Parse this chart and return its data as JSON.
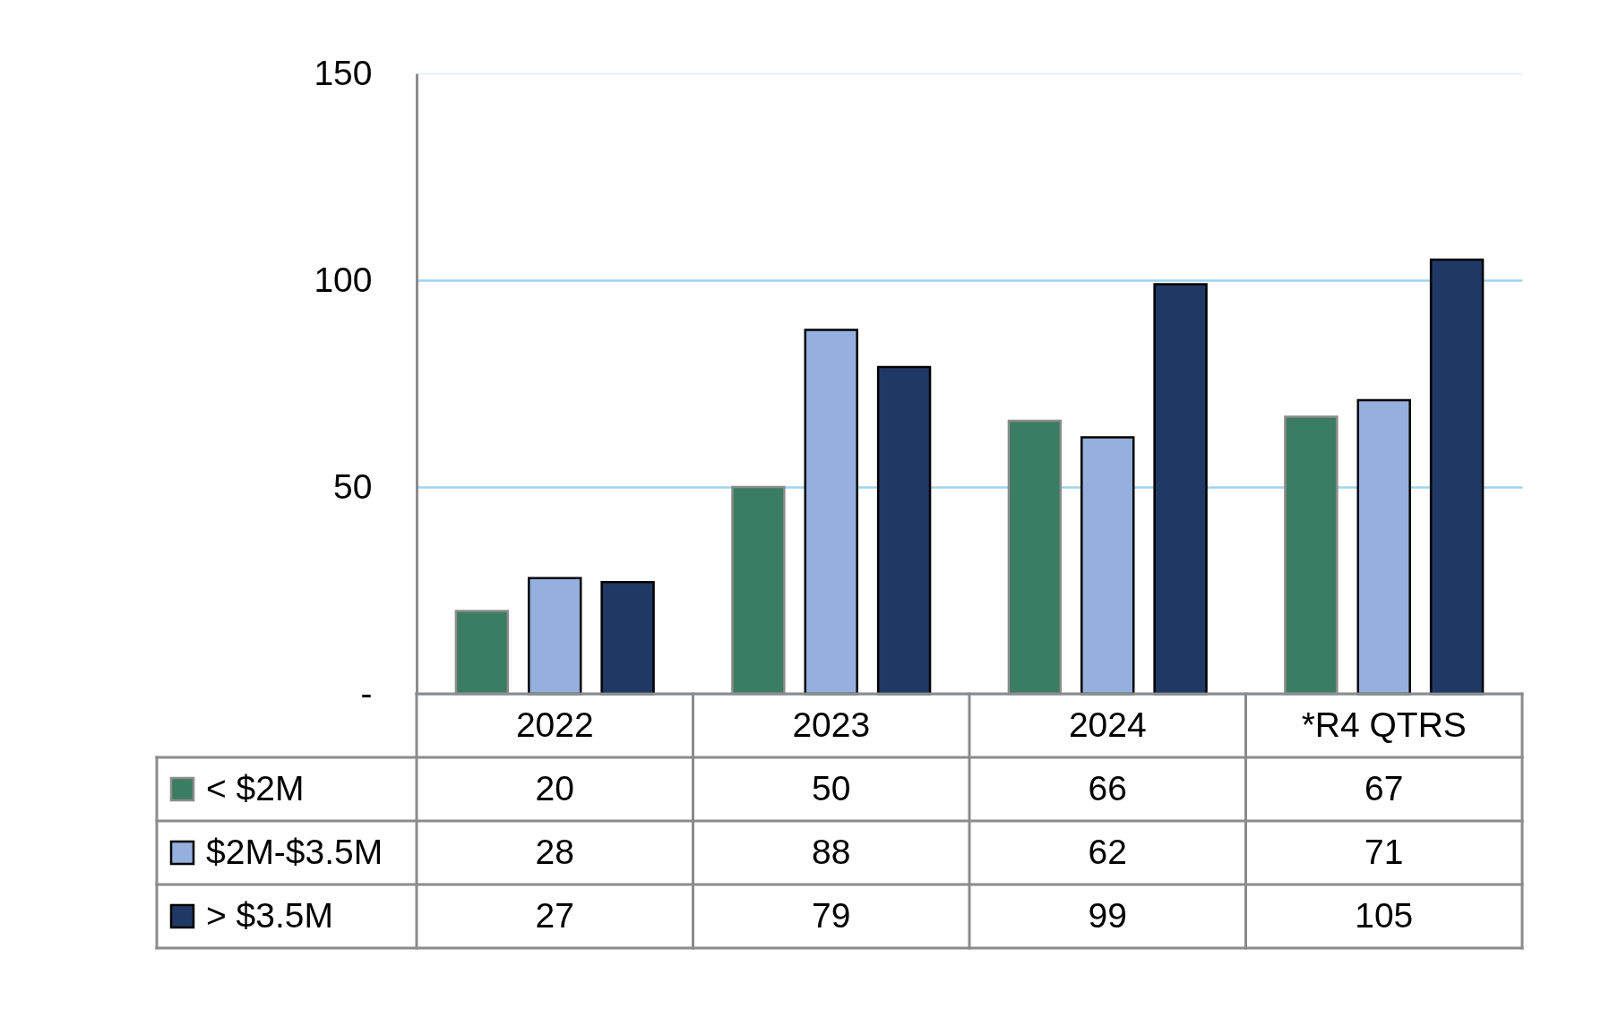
{
  "chart_data": {
    "type": "bar",
    "categories": [
      "2022",
      "2023",
      "2024",
      "*R4 QTRS"
    ],
    "series": [
      {
        "name": "< $2M",
        "color": "#3b7d62",
        "values": [
          20,
          50,
          66,
          67
        ]
      },
      {
        "name": "$2M-$3.5M",
        "color": "#95b0de",
        "values": [
          28,
          88,
          62,
          71
        ]
      },
      {
        "name": "> $3.5M",
        "color": "#203864",
        "values": [
          27,
          79,
          99,
          105
        ]
      }
    ],
    "ylim": [
      0,
      150
    ],
    "yticks": [
      {
        "value": 0,
        "label": "-"
      },
      50,
      100,
      150
    ],
    "grid": "y",
    "legend": "bottom left",
    "data_labels": true
  }
}
